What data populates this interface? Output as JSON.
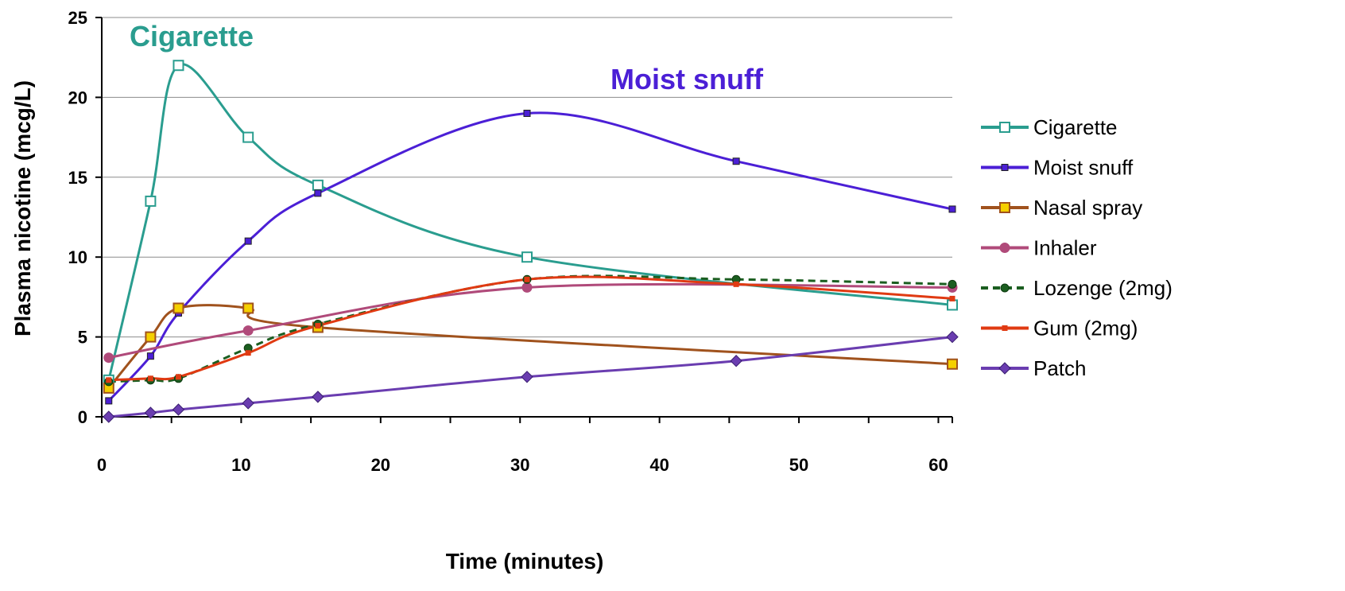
{
  "chart_data": {
    "type": "line",
    "xlabel": "Time (minutes)",
    "ylabel": "Plasma nicotine (mcg/L)",
    "xlim": [
      0,
      61
    ],
    "ylim": [
      0,
      25
    ],
    "xticks": [
      0,
      10,
      20,
      30,
      40,
      50,
      60
    ],
    "yticks": [
      0,
      5,
      10,
      15,
      20,
      25
    ],
    "grid": "horizontal",
    "legend_position": "right",
    "annotations": [
      {
        "text": "Cigarette",
        "series": "Cigarette",
        "color": "#2a9d8f"
      },
      {
        "text": "Moist snuff",
        "series": "Moist snuff",
        "color": "#4b1fd6"
      }
    ],
    "series": [
      {
        "name": "Cigarette",
        "color": "#2a9d8f",
        "marker": "square-open",
        "dash": false,
        "x": [
          0.5,
          3.5,
          5.5,
          10.5,
          15.5,
          30.5,
          61
        ],
        "y": [
          2.3,
          13.5,
          22.0,
          17.5,
          14.5,
          10.0,
          7.0
        ]
      },
      {
        "name": "Moist snuff",
        "color": "#4b1fd6",
        "marker": "square-small",
        "dash": false,
        "x": [
          0.5,
          3.5,
          5.5,
          10.5,
          15.5,
          30.5,
          45.5,
          61
        ],
        "y": [
          1.0,
          3.8,
          6.5,
          11.0,
          14.0,
          19.0,
          16.0,
          13.0
        ]
      },
      {
        "name": "Nasal spray",
        "color": "#a0521d",
        "marker": "square-yellow",
        "dash": false,
        "x": [
          0.5,
          3.5,
          5.5,
          10.5,
          15.5,
          61
        ],
        "y": [
          1.8,
          5.0,
          6.8,
          6.8,
          5.6,
          3.3
        ]
      },
      {
        "name": "Inhaler",
        "color": "#b04a7a",
        "marker": "circle",
        "dash": false,
        "x": [
          0.5,
          10.5,
          30.5,
          61
        ],
        "y": [
          3.7,
          5.4,
          8.1,
          8.1
        ]
      },
      {
        "name": "Lozenge (2mg)",
        "color": "#1b5e20",
        "marker": "circle-small",
        "dash": true,
        "x": [
          0.5,
          3.5,
          5.5,
          10.5,
          15.5,
          30.5,
          45.5,
          61
        ],
        "y": [
          2.2,
          2.3,
          2.4,
          4.3,
          5.8,
          8.6,
          8.6,
          8.3
        ]
      },
      {
        "name": "Gum (2mg)",
        "color": "#e03a12",
        "marker": "square-tiny",
        "dash": false,
        "x": [
          0.5,
          3.5,
          5.5,
          10.5,
          15.5,
          30.5,
          45.5,
          61
        ],
        "y": [
          2.3,
          2.4,
          2.5,
          4.0,
          5.7,
          8.6,
          8.3,
          7.4
        ]
      },
      {
        "name": "Patch",
        "color": "#6a3db0",
        "marker": "diamond",
        "dash": false,
        "x": [
          0.5,
          3.5,
          5.5,
          10.5,
          15.5,
          30.5,
          45.5,
          61
        ],
        "y": [
          0.0,
          0.25,
          0.45,
          0.85,
          1.25,
          2.5,
          3.5,
          5.0
        ]
      }
    ]
  }
}
